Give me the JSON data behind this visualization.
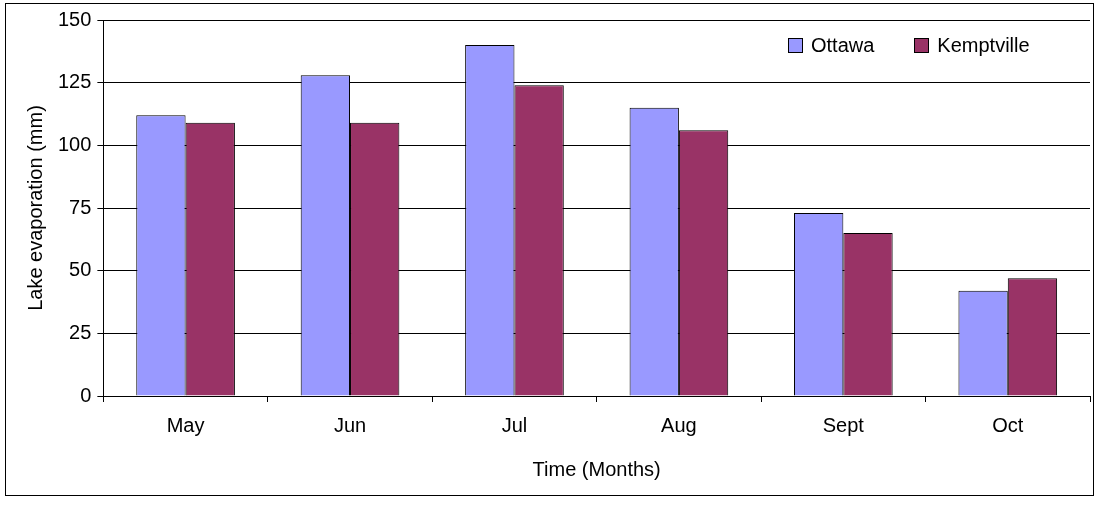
{
  "chart_data": {
    "type": "bar",
    "xlabel": "Time (Months)",
    "ylabel": "Lake evaporation (mm)",
    "categories": [
      "May",
      "Jun",
      "Jul",
      "Aug",
      "Sept",
      "Oct"
    ],
    "series": [
      {
        "name": "Ottawa",
        "color": "#9999ff",
        "values": [
          112,
          128,
          140,
          115,
          73,
          42
        ]
      },
      {
        "name": "Kemptville",
        "color": "#993366",
        "values": [
          109,
          109,
          124,
          106,
          65,
          47
        ]
      }
    ],
    "ylim": [
      0,
      150
    ],
    "yticks": [
      0,
      25,
      50,
      75,
      100,
      125,
      150
    ],
    "grid": "y",
    "legend": "top right"
  }
}
